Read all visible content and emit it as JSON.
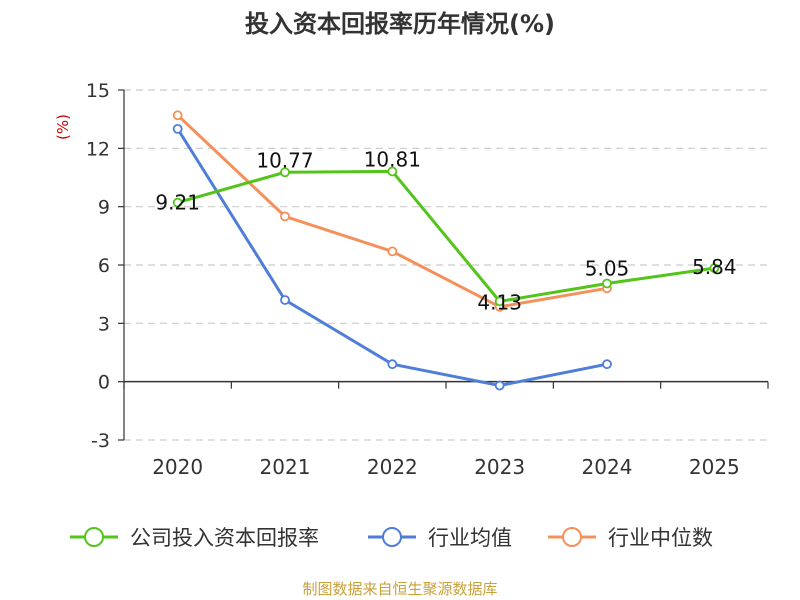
{
  "chart_data": {
    "type": "line",
    "title": "投入资本回报率历年情况(%)",
    "ylabel": "(%)",
    "categories": [
      "2020",
      "2021",
      "2022",
      "2023",
      "2024",
      "2025"
    ],
    "ylim": [
      -3,
      15
    ],
    "yticks": [
      15,
      12,
      9,
      6,
      3,
      0,
      -3
    ],
    "series": [
      {
        "name": "公司投入资本回报率",
        "color": "#52c41a",
        "values": [
          9.21,
          10.77,
          10.81,
          4.13,
          5.05,
          5.84
        ],
        "labels": [
          "9.21",
          "10.77",
          "10.81",
          "4.13",
          "5.05",
          "5.84"
        ]
      },
      {
        "name": "行业均值",
        "color": "#4e7ed8",
        "values": [
          13.0,
          4.2,
          0.9,
          -0.2,
          0.9,
          null
        ]
      },
      {
        "name": "行业中位数",
        "color": "#f5905a",
        "values": [
          13.7,
          8.5,
          6.7,
          3.85,
          4.8,
          null
        ]
      }
    ],
    "source": "制图数据来自恒生聚源数据库"
  }
}
